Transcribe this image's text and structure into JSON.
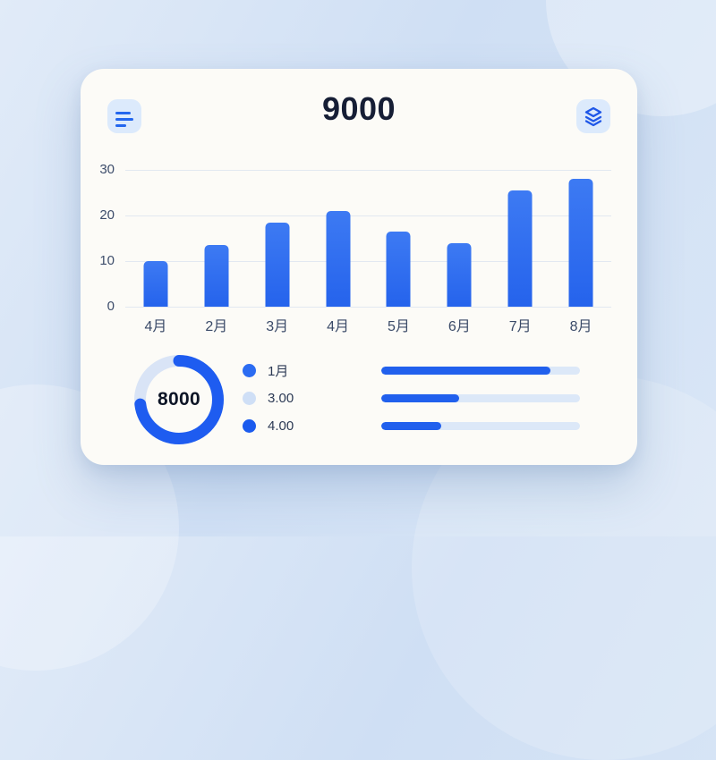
{
  "header": {
    "title": "9000",
    "menu_button_icon": "filter-lines-icon",
    "layers_button_icon": "layers-icon"
  },
  "chart_data": [
    {
      "type": "bar",
      "title": "",
      "categories": [
        "4月",
        "2月",
        "3月",
        "4月",
        "5月",
        "6月",
        "7月",
        "8月"
      ],
      "values": [
        10,
        13.5,
        18.5,
        21,
        16.5,
        14,
        25.5,
        28
      ],
      "xlabel": "",
      "ylabel": "",
      "ylim": [
        0,
        30
      ],
      "yticks": [
        30,
        20,
        10,
        0
      ],
      "grid": true,
      "legend_position": "none",
      "bar_color": "#2b6bf0"
    },
    {
      "type": "pie",
      "subtype": "donut",
      "center_label": "8000",
      "segment_names": [
        "filled",
        "remainder"
      ],
      "values": [
        73,
        27
      ],
      "colors": [
        "#1e5cf0",
        "#d9e4f6"
      ]
    },
    {
      "type": "bar",
      "subtype": "horizontal-progress",
      "values_percent": [
        85,
        39,
        30
      ],
      "fill_color": "#2160ed",
      "track_color": "#dce8f8"
    }
  ],
  "legend": {
    "items": [
      {
        "label": "1月",
        "color": "#2b6cf2"
      },
      {
        "label": "3.00",
        "color": "#cfdff6"
      },
      {
        "label": "4.00",
        "color": "#1b5bee"
      }
    ]
  },
  "colors": {
    "accent_blue": "#2563eb",
    "bar_blue": "#2b6bf0",
    "donut_blue": "#1e5cf0",
    "light_track": "#dce8f8",
    "card_bg": "#fcfbf7",
    "page_bg": "#d4e2f4",
    "title_text": "#161e35",
    "axis_text": "#3d4d6b"
  }
}
